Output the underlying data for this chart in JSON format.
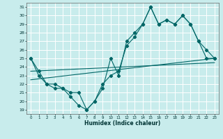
{
  "xlabel": "Humidex (Indice chaleur)",
  "bg_color": "#c8ecec",
  "line_color": "#006666",
  "grid_color": "#ffffff",
  "xlim": [
    -0.5,
    23.5
  ],
  "ylim": [
    18.5,
    31.5
  ],
  "yticks": [
    19,
    20,
    21,
    22,
    23,
    24,
    25,
    26,
    27,
    28,
    29,
    30,
    31
  ],
  "xticks": [
    0,
    1,
    2,
    3,
    4,
    5,
    6,
    7,
    8,
    9,
    10,
    11,
    12,
    13,
    14,
    15,
    16,
    17,
    18,
    19,
    20,
    21,
    22,
    23
  ],
  "line1_x": [
    0,
    1,
    2,
    3,
    4,
    5,
    6,
    7,
    8,
    9,
    10,
    11,
    12,
    13,
    14,
    15,
    16,
    17,
    18,
    19,
    20,
    21,
    22,
    23
  ],
  "line1_y": [
    25,
    23,
    22,
    21.5,
    21.5,
    20.5,
    19.5,
    19,
    20,
    21.5,
    25,
    23,
    27,
    28,
    29,
    31,
    29,
    29.5,
    29,
    30,
    29,
    27,
    26,
    25
  ],
  "line2_x": [
    0,
    1,
    2,
    3,
    4,
    5,
    6,
    7,
    8,
    9,
    10,
    11,
    12,
    13,
    14,
    15,
    16,
    17,
    18,
    19,
    20,
    21,
    22,
    23
  ],
  "line2_y": [
    25,
    23.5,
    22,
    22,
    21.5,
    21,
    21,
    19,
    20,
    22,
    23,
    23.5,
    26.5,
    27.5,
    29,
    31,
    29,
    29.5,
    29,
    30,
    29,
    27,
    25,
    25
  ],
  "trend1_x": [
    0,
    23
  ],
  "trend1_y": [
    22.5,
    25.0
  ],
  "trend2_x": [
    0,
    23
  ],
  "trend2_y": [
    23.5,
    24.5
  ]
}
